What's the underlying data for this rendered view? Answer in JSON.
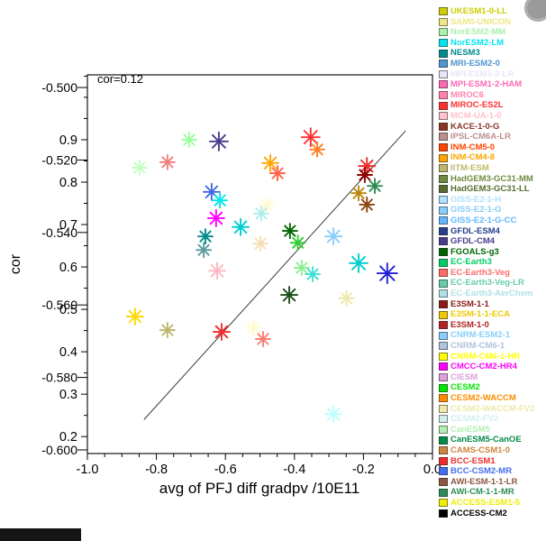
{
  "chart_data": {
    "type": "scatter",
    "annotation": "cor=0.12",
    "xlabel": "avg of PFJ diff gradpv /10E11",
    "ylabel": "cor",
    "xlim": [
      -1.0,
      0.0
    ],
    "xticks": [
      -1.0,
      -0.8,
      -0.6,
      -0.4,
      -0.2,
      0.0
    ],
    "x_minor_step": 0.05,
    "ylim_inner": [
      0.16,
      1.053
    ],
    "yticks_inner": [
      0.2,
      0.3,
      0.4,
      0.5,
      0.6,
      0.7,
      0.8,
      0.9
    ],
    "y_minor_step": 0.05,
    "ylim_outer": [
      -0.601,
      -0.4965
    ],
    "yticks_outer": [
      -0.5,
      -0.52,
      -0.54,
      -0.56,
      -0.58,
      -0.6
    ],
    "grid": false,
    "legend_position": "right",
    "fit_line": {
      "x1": -0.836,
      "y1": 0.24,
      "x2": -0.078,
      "y2": 0.921
    },
    "points": [
      {
        "x": -0.705,
        "y": 0.9,
        "color": "#9aff9a"
      },
      {
        "x": -0.619,
        "y": 0.896,
        "color": "#483d8b",
        "size": 10
      },
      {
        "x": -0.353,
        "y": 0.906,
        "color": "#ff3030",
        "size": 10
      },
      {
        "x": -0.334,
        "y": 0.877,
        "color": "#ff7f24"
      },
      {
        "x": -0.849,
        "y": 0.834,
        "color": "#c1ffc1"
      },
      {
        "x": -0.768,
        "y": 0.847,
        "color": "#f08080"
      },
      {
        "x": -0.47,
        "y": 0.845,
        "color": "#ffa500",
        "size": 9
      },
      {
        "x": -0.449,
        "y": 0.821,
        "color": "#ff6347"
      },
      {
        "x": -0.19,
        "y": 0.838,
        "color": "#ee2c2c",
        "size": 9
      },
      {
        "x": -0.196,
        "y": 0.817,
        "color": "#8b0000"
      },
      {
        "x": -0.167,
        "y": 0.791,
        "color": "#2e8b57"
      },
      {
        "x": -0.64,
        "y": 0.777,
        "color": "#4169e1",
        "size": 9
      },
      {
        "x": -0.616,
        "y": 0.757,
        "color": "#00e5ee"
      },
      {
        "x": -0.48,
        "y": 0.745,
        "color": "#fffacd"
      },
      {
        "x": -0.214,
        "y": 0.774,
        "color": "#b8860b"
      },
      {
        "x": -0.19,
        "y": 0.747,
        "color": "#8b4513"
      },
      {
        "x": -0.627,
        "y": 0.715,
        "color": "#ff00ff",
        "size": 9
      },
      {
        "x": -0.556,
        "y": 0.694,
        "color": "#00ced1",
        "size": 9
      },
      {
        "x": -0.658,
        "y": 0.672,
        "color": "#008b8b"
      },
      {
        "x": -0.496,
        "y": 0.726,
        "color": "#afeeee"
      },
      {
        "x": -0.413,
        "y": 0.685,
        "color": "#006400"
      },
      {
        "x": -0.39,
        "y": 0.657,
        "color": "#32cd32"
      },
      {
        "x": -0.287,
        "y": 0.672,
        "color": "#87cefa",
        "size": 9
      },
      {
        "x": -0.498,
        "y": 0.655,
        "color": "#f5deb3"
      },
      {
        "x": -0.663,
        "y": 0.64,
        "color": "#5f9ea0"
      },
      {
        "x": -0.624,
        "y": 0.591,
        "color": "#ffb6c1",
        "size": 9
      },
      {
        "x": -0.379,
        "y": 0.598,
        "color": "#90ee90"
      },
      {
        "x": -0.347,
        "y": 0.583,
        "color": "#40e0d0"
      },
      {
        "x": -0.214,
        "y": 0.609,
        "color": "#00cdcd",
        "size": 10
      },
      {
        "x": -0.131,
        "y": 0.585,
        "color": "#2121de",
        "size": 11
      },
      {
        "x": -0.415,
        "y": 0.534,
        "color": "#1b4d1b",
        "size": 9
      },
      {
        "x": -0.249,
        "y": 0.526,
        "color": "#eee8aa"
      },
      {
        "x": -0.862,
        "y": 0.483,
        "color": "#ffd700",
        "size": 9
      },
      {
        "x": -0.768,
        "y": 0.451,
        "color": "#bdb76b"
      },
      {
        "x": -0.611,
        "y": 0.447,
        "color": "#ee2c2c",
        "size": 9
      },
      {
        "x": -0.519,
        "y": 0.457,
        "color": "#fffacd"
      },
      {
        "x": -0.491,
        "y": 0.43,
        "color": "#fa8072"
      },
      {
        "x": -0.287,
        "y": 0.253,
        "color": "#bbffff",
        "size": 9
      }
    ]
  },
  "legend": {
    "items": [
      {
        "label": "UKESM1-0-LL",
        "color": "#cdcd00"
      },
      {
        "label": "SAM0-UNICON",
        "color": "#eee685"
      },
      {
        "label": "NorESM2-MM",
        "color": "#aaf0aa"
      },
      {
        "label": "NorESM2-LM",
        "color": "#00e5ee"
      },
      {
        "label": "NESM3",
        "color": "#008b8b"
      },
      {
        "label": "MRI-ESM2-0",
        "color": "#4f94cd"
      },
      {
        "label": "MPI-ESM1-2-LR",
        "color": "#e6e6fa"
      },
      {
        "label": "MPI-ESM1-2-HAM",
        "color": "#ff69b4"
      },
      {
        "label": "MIROC6",
        "color": "#ff82ab"
      },
      {
        "label": "MIROC-ES2L",
        "color": "#ff3030"
      },
      {
        "label": "MCM-UA-1-0",
        "color": "#ffc1cc"
      },
      {
        "label": "KACE-1-0-G",
        "color": "#8b3626"
      },
      {
        "label": "IPSL-CM6A-LR",
        "color": "#bc8f8f"
      },
      {
        "label": "INM-CM5-0",
        "color": "#ff4500"
      },
      {
        "label": "INM-CM4-8",
        "color": "#ffa500"
      },
      {
        "label": "IITM-ESM",
        "color": "#bdb76b"
      },
      {
        "label": "HadGEM3-GC31-MM",
        "color": "#6e8b3d"
      },
      {
        "label": "HadGEM3-GC31-LL",
        "color": "#556b2f"
      },
      {
        "label": "GISS-E2-1-H",
        "color": "#b0e2ff"
      },
      {
        "label": "GISS-E2-1-G",
        "color": "#87cefa"
      },
      {
        "label": "GISS-E2-1-G-CC",
        "color": "#63b8ff"
      },
      {
        "label": "GFDL-ESM4",
        "color": "#27408b"
      },
      {
        "label": "GFDL-CM4",
        "color": "#483d8b"
      },
      {
        "label": "FGOALS-g3",
        "color": "#006400"
      },
      {
        "label": "EC-Earth3",
        "color": "#00cd66"
      },
      {
        "label": "EC-Earth3-Veg",
        "color": "#ff6a6a"
      },
      {
        "label": "EC-Earth3-Veg-LR",
        "color": "#66cdaa"
      },
      {
        "label": "EC-Earth3-AerChem",
        "color": "#b0e0e6"
      },
      {
        "label": "E3SM-1-1",
        "color": "#8b1a1a"
      },
      {
        "label": "E3SM-1-1-ECA",
        "color": "#eec900"
      },
      {
        "label": "E3SM-1-0",
        "color": "#b22222"
      },
      {
        "label": "CNRM-ESM2-1",
        "color": "#87cefa"
      },
      {
        "label": "CNRM-CM6-1",
        "color": "#b0c4de"
      },
      {
        "label": "CNRM-CM6-1-HR",
        "color": "#ffff00"
      },
      {
        "label": "CMCC-CM2-HR4",
        "color": "#ff00ff"
      },
      {
        "label": "CIESM",
        "color": "#dda0dd"
      },
      {
        "label": "CESM2",
        "color": "#00e600"
      },
      {
        "label": "CESM2-WACCM",
        "color": "#ff8c00"
      },
      {
        "label": "CESM2-WACCM-FV2",
        "color": "#eee8aa"
      },
      {
        "label": "CESM2-FV2",
        "color": "#d1eeee"
      },
      {
        "label": "CanESM5",
        "color": "#b4eeb4"
      },
      {
        "label": "CanESM5-CanOE",
        "color": "#008b45"
      },
      {
        "label": "CAMS-CSM1-0",
        "color": "#cd853f"
      },
      {
        "label": "BCC-ESM1",
        "color": "#ee2c2c"
      },
      {
        "label": "BCC-CSM2-MR",
        "color": "#436eee"
      },
      {
        "label": "AWI-ESM-1-1-LR",
        "color": "#8b5742"
      },
      {
        "label": "AWI-CM-1-1-MR",
        "color": "#2e8b57"
      },
      {
        "label": "ACCESS-ESM1-5",
        "color": "#eeee00"
      },
      {
        "label": "ACCESS-CM2",
        "color": "#000000"
      }
    ]
  },
  "colors": {
    "background": "#ffffff",
    "frame": "#000000",
    "fit_line": "#3c3c3c"
  }
}
